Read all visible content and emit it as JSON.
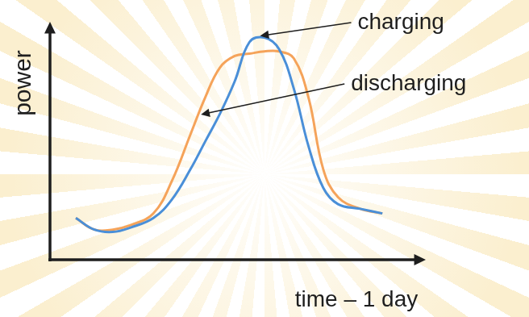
{
  "chart_data": {
    "type": "line",
    "x": [
      7,
      12,
      17,
      22,
      28,
      33,
      38,
      42,
      46,
      50,
      54,
      58,
      62,
      66,
      70,
      74,
      78,
      84,
      90
    ],
    "series": [
      {
        "color": "#4a8fd8",
        "values": [
          18,
          13,
          12,
          14,
          18,
          26,
          39,
          51,
          63,
          77,
          94,
          96,
          91,
          74,
          49,
          31,
          24,
          22,
          20
        ]
      },
      {
        "color": "#f5a35a",
        "values": [
          18,
          13,
          13,
          15,
          20,
          34,
          54,
          70,
          83,
          88,
          89,
          90,
          90,
          87,
          70,
          39,
          27,
          22,
          20
        ]
      }
    ],
    "xlim": [
      0,
      100
    ],
    "ylim": [
      0,
      100
    ],
    "x_label": "time – 1 day",
    "y_label": "power",
    "tick_labels": false,
    "grid": false,
    "annotations": [
      {
        "text": "charging",
        "x": 56,
        "y": 96
      },
      {
        "text": "discharging",
        "x": 40,
        "y": 62
      }
    ]
  }
}
